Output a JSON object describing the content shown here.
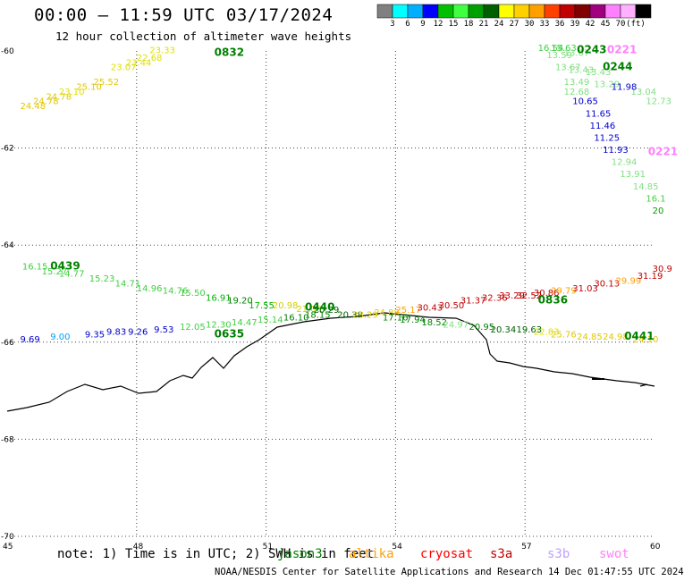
{
  "title": "00:00 – 11:59 UTC 03/17/2024",
  "subtitle": "12 hour collection of altimeter wave heights",
  "colorbar": {
    "colors": [
      "#808080",
      "#00ffff",
      "#00b0ff",
      "#0000ff",
      "#00c000",
      "#40ff40",
      "#00a000",
      "#006000",
      "#ffff00",
      "#ffd000",
      "#ffa000",
      "#ff4000",
      "#c00000",
      "#800000",
      "#a00080",
      "#ff80ff",
      "#ffb0ff",
      "#000000"
    ],
    "labels": [
      "3",
      "6",
      "9",
      "12",
      "15",
      "18",
      "21",
      "24",
      "27",
      "30",
      "33",
      "36",
      "39",
      "42",
      "45",
      "70",
      "(ft)"
    ]
  },
  "axes": {
    "lat_labels": [
      "-60",
      "-62",
      "-64",
      "-66",
      "-68",
      "-70"
    ],
    "lon_labels": [
      "45",
      "48",
      "51",
      "54",
      "57",
      "60"
    ]
  },
  "tracks": [
    {
      "time": "0832",
      "time_color": "#008000",
      "points": [
        {
          "lon": 45.3,
          "lat": -61.2,
          "v": "24.48",
          "c": "#e0c800"
        },
        {
          "lon": 45.6,
          "lat": -61.1,
          "v": "24.78",
          "c": "#e0c800"
        },
        {
          "lon": 45.9,
          "lat": -61.0,
          "v": "24.78",
          "c": "#e0c800"
        },
        {
          "lon": 46.2,
          "lat": -60.9,
          "v": "23.10",
          "c": "#e0e000"
        },
        {
          "lon": 46.6,
          "lat": -60.8,
          "v": "25.10",
          "c": "#e0c800"
        },
        {
          "lon": 47.0,
          "lat": -60.7,
          "v": "25.52",
          "c": "#e0c800"
        },
        {
          "lon": 47.4,
          "lat": -60.4,
          "v": "23.07",
          "c": "#e0e000"
        },
        {
          "lon": 47.75,
          "lat": -60.3,
          "v": "23.44",
          "c": "#e0e000"
        },
        {
          "lon": 48.0,
          "lat": -60.2,
          "v": "22.68",
          "c": "#e0e000"
        },
        {
          "lon": 48.3,
          "lat": -60.05,
          "v": "23.33",
          "c": "#e0e000"
        }
      ]
    },
    {
      "time": "0243",
      "time_color": "#008000",
      "points": [
        {
          "lon": 57.3,
          "lat": -60.0,
          "v": "16.54",
          "c": "#40d040"
        },
        {
          "lon": 57.6,
          "lat": -60.0,
          "v": "15.63",
          "c": "#40d040"
        },
        {
          "lon": 57.5,
          "lat": -60.15,
          "v": "13.59",
          "c": "#80e080"
        },
        {
          "lon": 57.9,
          "lat": -60.1,
          "v": "13.67",
          "c": "#80e080"
        },
        {
          "lon": 57.7,
          "lat": -60.4,
          "v": "13.67",
          "c": "#80e080"
        },
        {
          "lon": 58.0,
          "lat": -60.45,
          "v": "13.43",
          "c": "#80e080"
        },
        {
          "lon": 58.4,
          "lat": -60.5,
          "v": "13.43",
          "c": "#80e080"
        },
        {
          "lon": 57.9,
          "lat": -60.7,
          "v": "13.49",
          "c": "#80e080"
        },
        {
          "lon": 58.6,
          "lat": -60.75,
          "v": "13.29",
          "c": "#80e080"
        },
        {
          "lon": 57.9,
          "lat": -60.9,
          "v": "12.68",
          "c": "#80e080"
        },
        {
          "lon": 59.45,
          "lat": -60.9,
          "v": "13.04",
          "c": "#80e080"
        },
        {
          "lon": 59.8,
          "lat": -61.1,
          "v": "12.73",
          "c": "#80e080"
        }
      ]
    },
    {
      "time": "0244",
      "time_color": "#008000",
      "points": [
        {
          "lon": 58.1,
          "lat": -61.1,
          "v": "10.65",
          "c": "#0000d0"
        },
        {
          "lon": 59.0,
          "lat": -60.8,
          "v": "11.98",
          "c": "#0000d0"
        },
        {
          "lon": 58.4,
          "lat": -61.35,
          "v": "11.65",
          "c": "#0000d0"
        },
        {
          "lon": 58.5,
          "lat": -61.6,
          "v": "11.46",
          "c": "#0000d0"
        },
        {
          "lon": 58.6,
          "lat": -61.85,
          "v": "11.25",
          "c": "#0000d0"
        },
        {
          "lon": 58.8,
          "lat": -62.1,
          "v": "11.93",
          "c": "#0000d0"
        }
      ]
    },
    {
      "time": "0221",
      "time_color": "#ff80ff",
      "points": [
        {
          "lon": 59.0,
          "lat": -62.35,
          "v": "12.94",
          "c": "#80e080"
        },
        {
          "lon": 59.2,
          "lat": -62.6,
          "v": "13.91",
          "c": "#80e080"
        },
        {
          "lon": 59.5,
          "lat": -62.85,
          "v": "14.85",
          "c": "#80e080"
        },
        {
          "lon": 59.8,
          "lat": -63.1,
          "v": "16.1",
          "c": "#40d040"
        },
        {
          "lon": 59.95,
          "lat": -63.35,
          "v": "20",
          "c": "#00a000"
        }
      ]
    },
    {
      "time": "0439",
      "time_color": "#008000",
      "points": [
        {
          "lon": 45.35,
          "lat": -64.5,
          "v": "16.15",
          "c": "#40d040"
        },
        {
          "lon": 45.8,
          "lat": -64.6,
          "v": "15.27",
          "c": "#40d040"
        },
        {
          "lon": 46.2,
          "lat": -64.65,
          "v": "14.77",
          "c": "#40d040"
        },
        {
          "lon": 46.9,
          "lat": -64.75,
          "v": "15.23",
          "c": "#40d040"
        },
        {
          "lon": 47.5,
          "lat": -64.85,
          "v": "14.71",
          "c": "#40d040"
        },
        {
          "lon": 48.0,
          "lat": -64.95,
          "v": "14.96",
          "c": "#40d040"
        },
        {
          "lon": 48.6,
          "lat": -65.0,
          "v": "14.76",
          "c": "#40d040"
        },
        {
          "lon": 49.0,
          "lat": -65.05,
          "v": "15.50",
          "c": "#40d040"
        },
        {
          "lon": 49.6,
          "lat": -65.15,
          "v": "16.91",
          "c": "#00b000"
        },
        {
          "lon": 50.1,
          "lat": -65.2,
          "v": "19.20",
          "c": "#008000"
        },
        {
          "lon": 50.6,
          "lat": -65.3,
          "v": "17.55",
          "c": "#00b000"
        },
        {
          "lon": 51.15,
          "lat": -65.3,
          "v": "20.98",
          "c": "#d0d000"
        },
        {
          "lon": 51.7,
          "lat": -65.38,
          "v": "21.05",
          "c": "#d0d000"
        }
      ]
    },
    {
      "time": "0440",
      "time_color": "#008000",
      "points": [
        {
          "lon": 52.1,
          "lat": -65.4,
          "v": "20.29",
          "c": "#006000"
        },
        {
          "lon": 52.65,
          "lat": -65.5,
          "v": "20.38",
          "c": "#006000"
        },
        {
          "lon": 53.0,
          "lat": -65.5,
          "v": "23.29",
          "c": "#e0c800"
        },
        {
          "lon": 53.5,
          "lat": -65.45,
          "v": "24.88",
          "c": "#e0c800"
        },
        {
          "lon": 54.0,
          "lat": -65.4,
          "v": "25.17",
          "c": "#ffa000"
        },
        {
          "lon": 54.5,
          "lat": -65.35,
          "v": "30.43",
          "c": "#c00000"
        },
        {
          "lon": 55.0,
          "lat": -65.3,
          "v": "30.50",
          "c": "#c00000"
        },
        {
          "lon": 55.5,
          "lat": -65.2,
          "v": "31.37",
          "c": "#c00000"
        },
        {
          "lon": 56.0,
          "lat": -65.15,
          "v": "32.36",
          "c": "#c00000"
        },
        {
          "lon": 56.4,
          "lat": -65.1,
          "v": "33.29",
          "c": "#c00000"
        },
        {
          "lon": 56.8,
          "lat": -65.1,
          "v": "32.52",
          "c": "#c00000"
        }
      ]
    },
    {
      "time": "0836",
      "time_color": "#008000",
      "points": [
        {
          "lon": 57.2,
          "lat": -65.05,
          "v": "30.86",
          "c": "#c00000"
        },
        {
          "lon": 57.6,
          "lat": -65.0,
          "v": "29.79",
          "c": "#ffa000"
        },
        {
          "lon": 58.1,
          "lat": -64.95,
          "v": "31.03",
          "c": "#c00000"
        },
        {
          "lon": 58.6,
          "lat": -64.85,
          "v": "30.13",
          "c": "#c00000"
        },
        {
          "lon": 59.1,
          "lat": -64.8,
          "v": "29.99",
          "c": "#ffa000"
        },
        {
          "lon": 59.6,
          "lat": -64.7,
          "v": "31.19",
          "c": "#c00000"
        },
        {
          "lon": 59.95,
          "lat": -64.55,
          "v": "30.9",
          "c": "#c00000"
        }
      ]
    },
    {
      "time": "0635",
      "time_color": "#008000",
      "points": [
        {
          "lon": 45.3,
          "lat": -66.0,
          "v": "9.69",
          "c": "#0000d0"
        },
        {
          "lon": 46.0,
          "lat": -65.95,
          "v": "9.00",
          "c": "#00a0ff"
        },
        {
          "lon": 46.8,
          "lat": -65.9,
          "v": "9.35",
          "c": "#0000d0"
        },
        {
          "lon": 47.3,
          "lat": -65.85,
          "v": "9.83",
          "c": "#0000d0"
        },
        {
          "lon": 47.8,
          "lat": -65.85,
          "v": "9.26",
          "c": "#0000d0"
        },
        {
          "lon": 48.4,
          "lat": -65.8,
          "v": "9.53",
          "c": "#0000d0"
        },
        {
          "lon": 49.0,
          "lat": -65.75,
          "v": "12.05",
          "c": "#40d040"
        },
        {
          "lon": 49.6,
          "lat": -65.7,
          "v": "12.30",
          "c": "#40d040"
        },
        {
          "lon": 50.2,
          "lat": -65.65,
          "v": "14.47",
          "c": "#40d040"
        },
        {
          "lon": 50.8,
          "lat": -65.6,
          "v": "15.14",
          "c": "#40d040"
        },
        {
          "lon": 51.4,
          "lat": -65.55,
          "v": "16.10",
          "c": "#008000"
        },
        {
          "lon": 51.9,
          "lat": -65.5,
          "v": "18.15",
          "c": "#008000"
        }
      ]
    },
    {
      "time": "0441",
      "time_color": "#008000",
      "points": [
        {
          "lon": 53.7,
          "lat": -65.55,
          "v": "17.16",
          "c": "#008000"
        },
        {
          "lon": 54.1,
          "lat": -65.6,
          "v": "17.94",
          "c": "#008000"
        },
        {
          "lon": 54.6,
          "lat": -65.65,
          "v": "18.52",
          "c": "#008000"
        },
        {
          "lon": 55.1,
          "lat": -65.7,
          "v": "24.97",
          "c": "#80e080"
        },
        {
          "lon": 55.7,
          "lat": -65.75,
          "v": "20.95",
          "c": "#008000"
        },
        {
          "lon": 56.2,
          "lat": -65.8,
          "v": "20.34",
          "c": "#006000"
        },
        {
          "lon": 56.8,
          "lat": -65.8,
          "v": "19.63",
          "c": "#006000"
        },
        {
          "lon": 57.2,
          "lat": -65.85,
          "v": "22.83",
          "c": "#e0e000"
        },
        {
          "lon": 57.6,
          "lat": -65.9,
          "v": "25.76",
          "c": "#e0c800"
        },
        {
          "lon": 58.2,
          "lat": -65.95,
          "v": "24.85",
          "c": "#e0c800"
        },
        {
          "lon": 58.8,
          "lat": -65.95,
          "v": "24.98",
          "c": "#e0c800"
        },
        {
          "lon": 59.5,
          "lat": -66.0,
          "v": "24.10",
          "c": "#e0c800"
        }
      ]
    }
  ],
  "time_labels": [
    {
      "text": "0832",
      "lon": 49.8,
      "lat": -60.1,
      "c": "#008000"
    },
    {
      "text": "0243",
      "lon": 58.2,
      "lat": -60.05,
      "c": "#008000"
    },
    {
      "text": "0221",
      "lon": 58.9,
      "lat": -60.05,
      "c": "#ff80ff"
    },
    {
      "text": "0244",
      "lon": 58.8,
      "lat": -60.4,
      "c": "#008000"
    },
    {
      "text": "0221",
      "lon": 59.85,
      "lat": -62.15,
      "c": "#ff80ff"
    },
    {
      "text": "0439",
      "lon": 46.0,
      "lat": -64.5,
      "c": "#008000"
    },
    {
      "text": "0440",
      "lon": 51.9,
      "lat": -65.35,
      "c": "#008000"
    },
    {
      "text": "0635",
      "lon": 49.8,
      "lat": -65.9,
      "c": "#008000"
    },
    {
      "text": "0836",
      "lon": 57.3,
      "lat": -65.2,
      "c": "#008000"
    },
    {
      "text": "0441",
      "lon": 59.3,
      "lat": -65.95,
      "c": "#008000"
    }
  ],
  "note": "note: 1) Time is in UTC; 2) SWH is in feet",
  "legend": [
    {
      "text": "jason3",
      "c": "#008000"
    },
    {
      "text": "altika",
      "c": "#ffa000"
    },
    {
      "text": "cryosat",
      "c": "#ff0000"
    },
    {
      "text": "s3a",
      "c": "#c00000"
    },
    {
      "text": "s3b",
      "c": "#c0a0ff"
    },
    {
      "text": "swot",
      "c": "#ff80ff"
    }
  ],
  "footer": "NOAA/NESDIS Center for Satellite Applications and Research   14 Dec 01:47:55 UTC 2024"
}
